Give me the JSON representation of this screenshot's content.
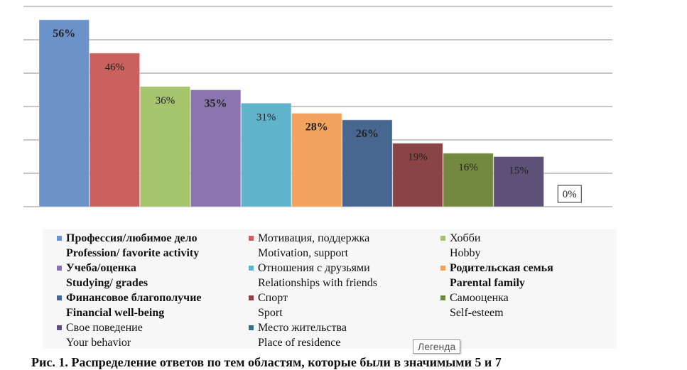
{
  "chart_data": {
    "type": "bar",
    "categories": [
      "Профессия/любимое дело Profession/ favorite activity",
      "Мотивация, поддержка Motivation, support",
      "Хобби Hobby",
      "Учеба/оценка Studying/ grades",
      "Отношения с друзьями Relationships with friends",
      "Родительская семья Parental family",
      "Финансовое благополучие Financial well-being",
      "Спорт Sport",
      "Самооценка Self-esteem",
      "Свое поведение Your behavior",
      "Место жительства Place of residence"
    ],
    "values": [
      56,
      46,
      36,
      35,
      31,
      28,
      26,
      19,
      16,
      15,
      0
    ],
    "labels": [
      "56%",
      "46%",
      "36%",
      "35%",
      "31%",
      "28%",
      "26%",
      "19%",
      "16%",
      "15%",
      "0%"
    ],
    "bold_labels": [
      true,
      false,
      false,
      true,
      false,
      true,
      true,
      false,
      false,
      false,
      false
    ],
    "colors": [
      "#6b93c9",
      "#c9625f",
      "#a6c36d",
      "#8a73ae",
      "#5fb3ca",
      "#f2a35e",
      "#476790",
      "#8b4446",
      "#72893f",
      "#5d5178",
      "#3a6f86"
    ],
    "ylim": [
      0,
      60
    ],
    "grid": true,
    "title": "",
    "xlabel": "",
    "ylabel": ""
  },
  "legend": [
    {
      "ru": "Профессия/любимое дело",
      "en": "Profession/ favorite activity",
      "bold": true,
      "color": "#6b93c9"
    },
    {
      "ru": "Мотивация, поддержка",
      "en": "Motivation, support",
      "bold": false,
      "color": "#c9625f"
    },
    {
      "ru": "Хобби",
      "en": "Hobby",
      "bold": false,
      "color": "#a6c36d"
    },
    {
      "ru": "Учеба/оценка",
      "en": "Studying/ grades",
      "bold": true,
      "color": "#8a73ae"
    },
    {
      "ru": "Отношения с друзьями",
      "en": "Relationships with friends",
      "bold": false,
      "color": "#5fb3ca"
    },
    {
      "ru": "Родительская семья",
      "en": "Parental family",
      "bold": true,
      "color": "#f2a35e"
    },
    {
      "ru": "Финансовое благополучие",
      "en": "Financial well-being",
      "bold": true,
      "color": "#476790"
    },
    {
      "ru": "Спорт",
      "en": "Sport",
      "bold": false,
      "color": "#8b4446"
    },
    {
      "ru": "Самооценка",
      "en": "Self-esteem",
      "bold": false,
      "color": "#72893f"
    },
    {
      "ru": "Свое поведение",
      "en": "Your behavior",
      "bold": false,
      "color": "#5d5178"
    },
    {
      "ru": "Место жительства",
      "en": "Place of residence",
      "bold": false,
      "color": "#3a6f86"
    }
  ],
  "tooltip": {
    "text": "Легенда"
  },
  "caption": {
    "text": "Рис. 1. Распределение ответов по тем областям, которые были в значимыми 5 и 7"
  }
}
